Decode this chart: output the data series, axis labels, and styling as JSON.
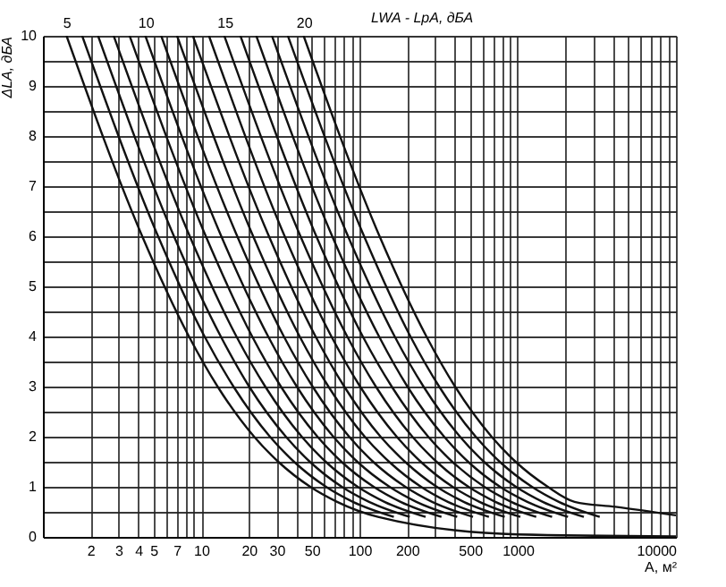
{
  "chart_data": {
    "type": "line",
    "xlabel": "A, м²",
    "ylabel": "ΔLA, дБА",
    "x2label": "LWA - LpA, дБА",
    "log": "x",
    "grid": true,
    "marker": "none",
    "line_style": "solid",
    "xlim": [
      1,
      10000
    ],
    "xticks": [
      2,
      3,
      4,
      5,
      {
        "value": 6,
        "label": null
      },
      7,
      {
        "value": 8,
        "label": null
      },
      {
        "value": 9,
        "label": null
      },
      10,
      20,
      30,
      {
        "value": 40,
        "label": null
      },
      50,
      {
        "value": 60,
        "label": null
      },
      {
        "value": 70,
        "label": null
      },
      {
        "value": 80,
        "label": null
      },
      {
        "value": 90,
        "label": null
      },
      100,
      200,
      {
        "value": 300,
        "label": null
      },
      {
        "value": 400,
        "label": null
      },
      500,
      {
        "value": 600,
        "label": null
      },
      {
        "value": 700,
        "label": null
      },
      {
        "value": 800,
        "label": null
      },
      {
        "value": 900,
        "label": null
      },
      1000,
      {
        "value": 2000,
        "label": null
      },
      {
        "value": 3000,
        "label": null
      },
      {
        "value": 4000,
        "label": null
      },
      {
        "value": 5000,
        "label": null
      },
      {
        "value": 6000,
        "label": null
      },
      {
        "value": 7000,
        "label": null
      },
      {
        "value": 8000,
        "label": null
      },
      {
        "value": 9000,
        "label": null
      },
      10000
    ],
    "ylim": [
      0,
      10
    ],
    "yticks": [
      0,
      {
        "value": 0.5,
        "label": null
      },
      1,
      {
        "value": 1.5,
        "label": null
      },
      2,
      {
        "value": 2.5,
        "label": null
      },
      3,
      {
        "value": 3.5,
        "label": null
      },
      4,
      {
        "value": 4.5,
        "label": null
      },
      5,
      {
        "value": 5.5,
        "label": null
      },
      6,
      {
        "value": 6.5,
        "label": null
      },
      7,
      {
        "value": 7.5,
        "label": null
      },
      8,
      {
        "value": 8.5,
        "label": null
      },
      9,
      {
        "value": 9.5,
        "label": null
      },
      10
    ],
    "x2lim": [
      3.52,
      43.52
    ],
    "x2ticks": [
      5,
      10,
      15,
      20
    ],
    "series": [
      {
        "color": "#111111",
        "x": [
          1.41,
          4.24,
          8.37,
          12.7,
          21.6,
          30.7,
          48.9,
          72.3,
          131,
          1000,
          10000
        ],
        "values": [
          10,
          6,
          4,
          3,
          2,
          1.5,
          1,
          0.7,
          0.4,
          0.05,
          0.01
        ]
      },
      {
        "color": "#111111",
        "x": [
          1.77,
          5.34,
          10.5,
          16.0,
          27.2,
          38.6,
          61.5,
          91.0,
          165
        ],
        "values": [
          10,
          6,
          4,
          3,
          2,
          1.5,
          1,
          0.7,
          0.4
        ]
      },
      {
        "color": "#111111",
        "x": [
          2.23,
          6.73,
          13.3,
          20.1,
          34.3,
          48.6,
          77.4,
          115,
          208
        ],
        "values": [
          10,
          6,
          4,
          3,
          2,
          1.5,
          1,
          0.7,
          0.4
        ]
      },
      {
        "color": "#111111",
        "x": [
          2.8,
          8.47,
          16.7,
          25.4,
          43.2,
          61.2,
          97.5,
          144,
          262
        ],
        "values": [
          10,
          6,
          4,
          3,
          2,
          1.5,
          1,
          0.7,
          0.4
        ]
      },
      {
        "color": "#111111",
        "x": [
          3.53,
          10.7,
          21.0,
          31.9,
          54.3,
          77.0,
          123,
          182,
          330
        ],
        "values": [
          10,
          6,
          4,
          3,
          2,
          1.5,
          1,
          0.7,
          0.4
        ]
      },
      {
        "color": "#111111",
        "x": [
          4.44,
          13.4,
          26.5,
          40.2,
          68.4,
          97.0,
          155,
          229,
          415
        ],
        "values": [
          10,
          6,
          4,
          3,
          2,
          1.5,
          1,
          0.7,
          0.4
        ]
      },
      {
        "color": "#111111",
        "x": [
          5.59,
          16.9,
          33.3,
          50.6,
          86.1,
          122,
          195,
          288,
          522
        ],
        "values": [
          10,
          6,
          4,
          3,
          2,
          1.5,
          1,
          0.7,
          0.4
        ]
      },
      {
        "color": "#111111",
        "x": [
          7.04,
          21.3,
          41.9,
          63.7,
          108,
          154,
          245,
          362,
          658
        ],
        "values": [
          10,
          6,
          4,
          3,
          2,
          1.5,
          1,
          0.7,
          0.4
        ]
      },
      {
        "color": "#111111",
        "x": [
          8.86,
          26.8,
          52.8,
          80.2,
          136,
          194,
          308,
          456,
          828
        ],
        "values": [
          10,
          6,
          4,
          3,
          2,
          1.5,
          1,
          0.7,
          0.4
        ]
      },
      {
        "color": "#111111",
        "x": [
          11.2,
          33.7,
          66.5,
          101,
          172,
          244,
          388,
          574,
          1040
        ],
        "values": [
          10,
          6,
          4,
          3,
          2,
          1.5,
          1,
          0.7,
          0.4
        ]
      },
      {
        "color": "#111111",
        "x": [
          14.0,
          42.4,
          83.7,
          127,
          216,
          307,
          489,
          723,
          1310
        ],
        "values": [
          10,
          6,
          4,
          3,
          2,
          1.5,
          1,
          0.7,
          0.4
        ]
      },
      {
        "color": "#111111",
        "x": [
          17.7,
          53.4,
          105,
          160,
          272,
          386,
          615,
          910,
          1650
        ],
        "values": [
          10,
          6,
          4,
          3,
          2,
          1.5,
          1,
          0.7,
          0.4
        ]
      },
      {
        "color": "#111111",
        "x": [
          22.3,
          67.3,
          133,
          201,
          343,
          486,
          774,
          1150,
          2080
        ],
        "values": [
          10,
          6,
          4,
          3,
          2,
          1.5,
          1,
          0.7,
          0.4
        ]
      },
      {
        "color": "#111111",
        "x": [
          28.0,
          84.7,
          167,
          254,
          432,
          612,
          975,
          1440,
          2620
        ],
        "values": [
          10,
          6,
          4,
          3,
          2,
          1.5,
          1,
          0.7,
          0.4
        ]
      },
      {
        "color": "#111111",
        "x": [
          35.3,
          107,
          210,
          319,
          543,
          770,
          1230,
          1820,
          3300
        ],
        "values": [
          10,
          6,
          4,
          3,
          2,
          1.5,
          1,
          0.7,
          0.4
        ]
      },
      {
        "color": "#111111",
        "x": [
          44.4,
          134,
          265,
          402,
          684,
          970,
          1550,
          2290,
          4150,
          10000
        ],
        "values": [
          10,
          6,
          4,
          3,
          2,
          1.5,
          1,
          0.7,
          0.6,
          0.43
        ]
      }
    ]
  }
}
